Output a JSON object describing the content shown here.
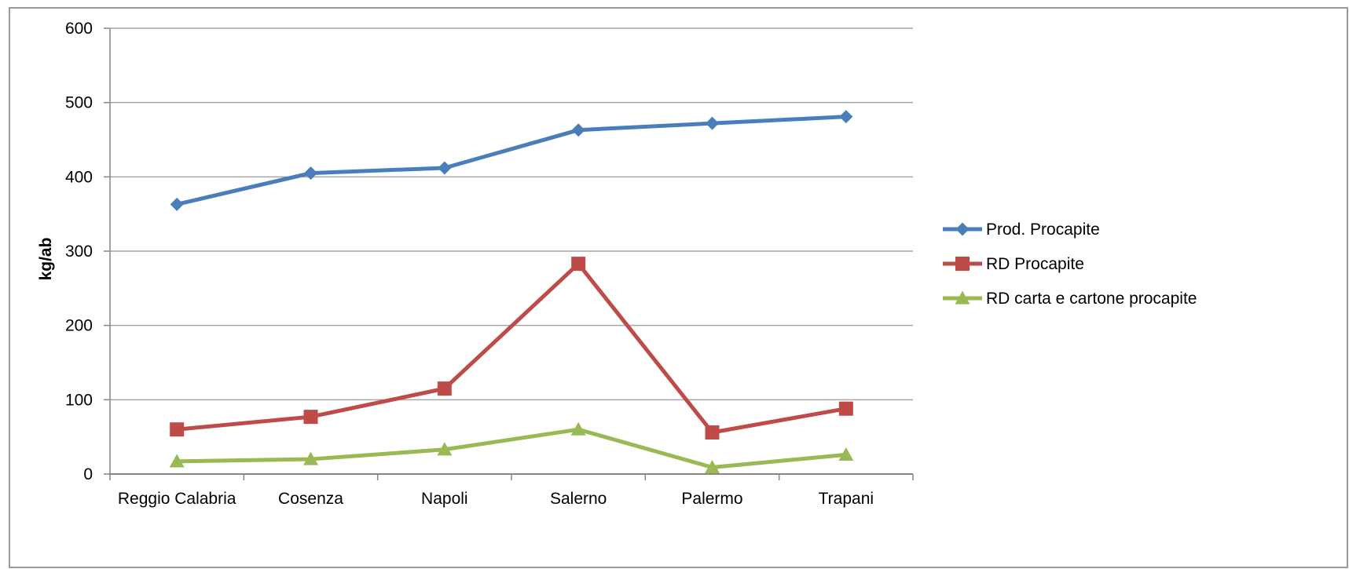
{
  "chart_data": {
    "type": "line",
    "categories": [
      "Reggio Calabria",
      "Cosenza",
      "Napoli",
      "Salerno",
      "Palermo",
      "Trapani"
    ],
    "series": [
      {
        "name": "Prod. Procapite",
        "values": [
          363,
          405,
          412,
          463,
          472,
          481
        ],
        "color": "#4a7ebb",
        "marker": "diamond"
      },
      {
        "name": "RD Procapite",
        "values": [
          60,
          77,
          115,
          283,
          56,
          88
        ],
        "color": "#be4b48",
        "marker": "square"
      },
      {
        "name": "RD carta e cartone procapite",
        "values": [
          17,
          20,
          33,
          60,
          9,
          26
        ],
        "color": "#98b954",
        "marker": "triangle"
      }
    ],
    "xlabel": "",
    "ylabel": "kg/ab",
    "ylim": [
      0,
      600
    ],
    "yticks": [
      0,
      100,
      200,
      300,
      400,
      500,
      600
    ],
    "grid": true,
    "legend_position": "right"
  }
}
